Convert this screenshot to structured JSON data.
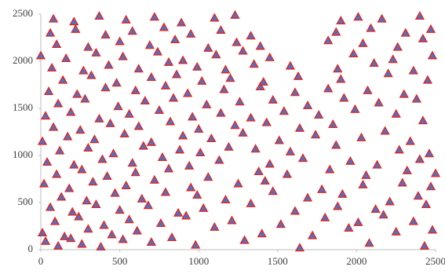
{
  "chart_data": {
    "type": "scatter",
    "x": [
      30,
      110,
      190,
      260,
      380,
      520,
      700,
      980,
      1290,
      1640,
      2080,
      2430,
      10,
      150,
      300,
      450,
      610,
      830,
      1100,
      1400,
      1720,
      1950,
      2250,
      2480,
      90,
      240,
      400,
      560,
      760,
      920,
      1210,
      1520,
      1800,
      2010,
      2170,
      2360,
      60,
      200,
      350,
      500,
      680,
      870,
      1030,
      1330,
      1610,
      1880,
      2120,
      2440,
      130,
      290,
      470,
      640,
      790,
      990,
      1170,
      1470,
      1690,
      1910,
      2210,
      2390,
      20,
      180,
      330,
      540,
      720,
      950,
      1250,
      1420,
      1780,
      2040,
      2290,
      2470,
      100,
      260,
      420,
      600,
      810,
      1060,
      1380,
      1560,
      1830,
      2060,
      2320,
      2500,
      40,
      210,
      390,
      580,
      770,
      940,
      1130,
      1450,
      1660,
      1960,
      2130,
      2400,
      120,
      300,
      460,
      650,
      880,
      1010,
      1190,
      1360,
      1580,
      1870,
      2270,
      2460,
      10,
      170,
      340,
      530,
      700,
      900,
      1080,
      1280,
      1510,
      1740,
      2030,
      2340,
      80,
      250,
      440,
      620,
      820,
      1000,
      1230,
      1430,
      1640,
      1850,
      2180,
      2420,
      30,
      190,
      370,
      560,
      750,
      960,
      1140,
      1330,
      1540,
      1760,
      1990,
      2250,
      110,
      280,
      490,
      660,
      840,
      1050,
      1260,
      1470,
      1690,
      1920,
      2140,
      2380,
      50,
      230,
      410,
      600,
      790,
      930,
      1160,
      1390,
      1610,
      1820,
      2070,
      2300,
      140,
      320,
      480,
      700,
      860,
      1020,
      1200,
      1410,
      1630,
      1900,
      2200,
      2450,
      70,
      270,
      430,
      620,
      810,
      990,
      1170,
      1350,
      1580,
      1880,
      2110,
      2360,
      0,
      160,
      350,
      520,
      740,
      900,
      1110,
      1280,
      1450,
      1980,
      2230,
      2480,
      100,
      300,
      500,
      690,
      850,
      1060,
      1240,
      1390,
      1820,
      2040,
      2260,
      2420,
      60,
      220,
      410,
      580,
      780,
      950,
      1140,
      1330,
      1870,
      2090,
      2310,
      2470,
      80,
      210,
      370,
      540,
      720,
      890,
      1100,
      1230,
      1900,
      2010,
      2160,
      2400
    ],
    "series": [
      {
        "color": "#4f72c4",
        "edgecolor": "#e8201a",
        "marker": "triangle",
        "values": [
          90,
          40,
          120,
          60,
          30,
          110,
          80,
          50,
          100,
          20,
          70,
          40,
          180,
          140,
          220,
          160,
          200,
          130,
          240,
          170,
          150,
          230,
          190,
          210,
          300,
          350,
          260,
          320,
          280,
          360,
          310,
          270,
          340,
          290,
          370,
          300,
          450,
          400,
          480,
          420,
          470,
          390,
          440,
          490,
          410,
          460,
          430,
          480,
          560,
          520,
          600,
          540,
          610,
          580,
          530,
          620,
          550,
          590,
          510,
          570,
          700,
          650,
          720,
          680,
          740,
          660,
          700,
          730,
          640,
          690,
          710,
          670,
          800,
          850,
          780,
          820,
          860,
          770,
          830,
          800,
          850,
          790,
          840,
          810,
          930,
          900,
          960,
          920,
          980,
          890,
          950,
          910,
          970,
          940,
          900,
          960,
          1050,
          1080,
          1020,
          1100,
          1060,
          1030,
          1090,
          1070,
          1040,
          1110,
          1060,
          1020,
          1150,
          1200,
          1170,
          1230,
          1140,
          1210,
          1180,
          1240,
          1160,
          1220,
          1190,
          1150,
          1300,
          1270,
          1340,
          1310,
          1360,
          1280,
          1320,
          1350,
          1290,
          1330,
          1260,
          1370,
          1420,
          1460,
          1390,
          1440,
          1480,
          1410,
          1450,
          1400,
          1470,
          1430,
          1490,
          1440,
          1550,
          1600,
          1520,
          1580,
          1610,
          1540,
          1570,
          1590,
          1530,
          1610,
          1560,
          1600,
          1680,
          1650,
          1720,
          1690,
          1740,
          1660,
          1700,
          1730,
          1670,
          1710,
          1690,
          1650,
          1800,
          1850,
          1770,
          1830,
          1860,
          1790,
          1820,
          1780,
          1840,
          1810,
          1870,
          1800,
          1930,
          1900,
          1960,
          1920,
          1990,
          1940,
          1910,
          1970,
          1950,
          1920,
          1980,
          1900,
          2060,
          2030,
          2090,
          2050,
          2100,
          2010,
          2070,
          2110,
          2040,
          2080,
          2020,
          2060,
          2180,
          2150,
          2210,
          2170,
          2230,
          2140,
          2200,
          2160,
          2220,
          2190,
          2150,
          2240,
          2300,
          2340,
          2280,
          2320,
          2360,
          2290,
          2330,
          2270,
          2310,
          2350,
          2300,
          2340,
          2450,
          2420,
          2480,
          2440,
          2470,
          2410,
          2460,
          2490,
          2430,
          2470,
          2450,
          2480
        ]
      }
    ],
    "xlim": [
      0,
      2500
    ],
    "ylim": [
      0,
      2500
    ],
    "xticks": [
      0,
      500,
      1000,
      1500,
      2000,
      2500
    ],
    "yticks": [
      0,
      500,
      1000,
      1500,
      2000,
      2500
    ]
  }
}
